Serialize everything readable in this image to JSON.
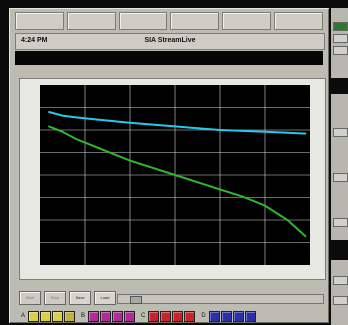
{
  "app": {
    "clock": "4:24 PM",
    "title": "SIA StreamLive"
  },
  "toolbar": {
    "buttons": [
      "",
      "",
      "",
      "",
      "",
      ""
    ]
  },
  "controls": {
    "buttons": [
      {
        "label": "Start",
        "enabled": false
      },
      {
        "label": "Stop",
        "enabled": false
      },
      {
        "label": "Save",
        "enabled": true
      },
      {
        "label": "Load",
        "enabled": true
      }
    ]
  },
  "colors": {
    "bright": "#27c9ea",
    "green": "#2eb82e",
    "panel": "#bdbcb3"
  },
  "chart_data": {
    "type": "line",
    "xlim": [
      0,
      60
    ],
    "ylim": [
      -80,
      20
    ],
    "grid": true,
    "series": [
      {
        "color": "#27c9ea",
        "x": [
          2,
          5,
          8,
          12,
          16,
          20,
          25,
          30,
          35,
          40,
          45,
          50,
          55,
          59
        ],
        "y": [
          5,
          3,
          2,
          1,
          0,
          -1,
          -2,
          -3,
          -4,
          -5,
          -5.5,
          -6,
          -6.5,
          -7
        ]
      },
      {
        "color": "#2eb82e",
        "x": [
          2,
          5,
          8,
          12,
          16,
          20,
          25,
          30,
          35,
          40,
          45,
          50,
          55,
          59
        ],
        "y": [
          -3,
          -6,
          -10,
          -14,
          -18,
          -22,
          -26,
          -30,
          -34,
          -38,
          -42,
          -47,
          -55,
          -64
        ]
      }
    ]
  },
  "bottom_groups": [
    {
      "label": "A",
      "swatches": [
        "#d8d04a",
        "#d8d04a",
        "#d8d04a",
        "#c0b040"
      ]
    },
    {
      "label": "B",
      "swatches": [
        "#b02a9a",
        "#b02a9a",
        "#b02a9a",
        "#b02a9a"
      ]
    },
    {
      "label": "C",
      "swatches": [
        "#c8232a",
        "#c8232a",
        "#c8232a",
        "#c8232a"
      ]
    },
    {
      "label": "D",
      "swatches": [
        "#2b2fa8",
        "#2b2fa8",
        "#2b2fa8",
        "#2b2fa8"
      ]
    }
  ]
}
